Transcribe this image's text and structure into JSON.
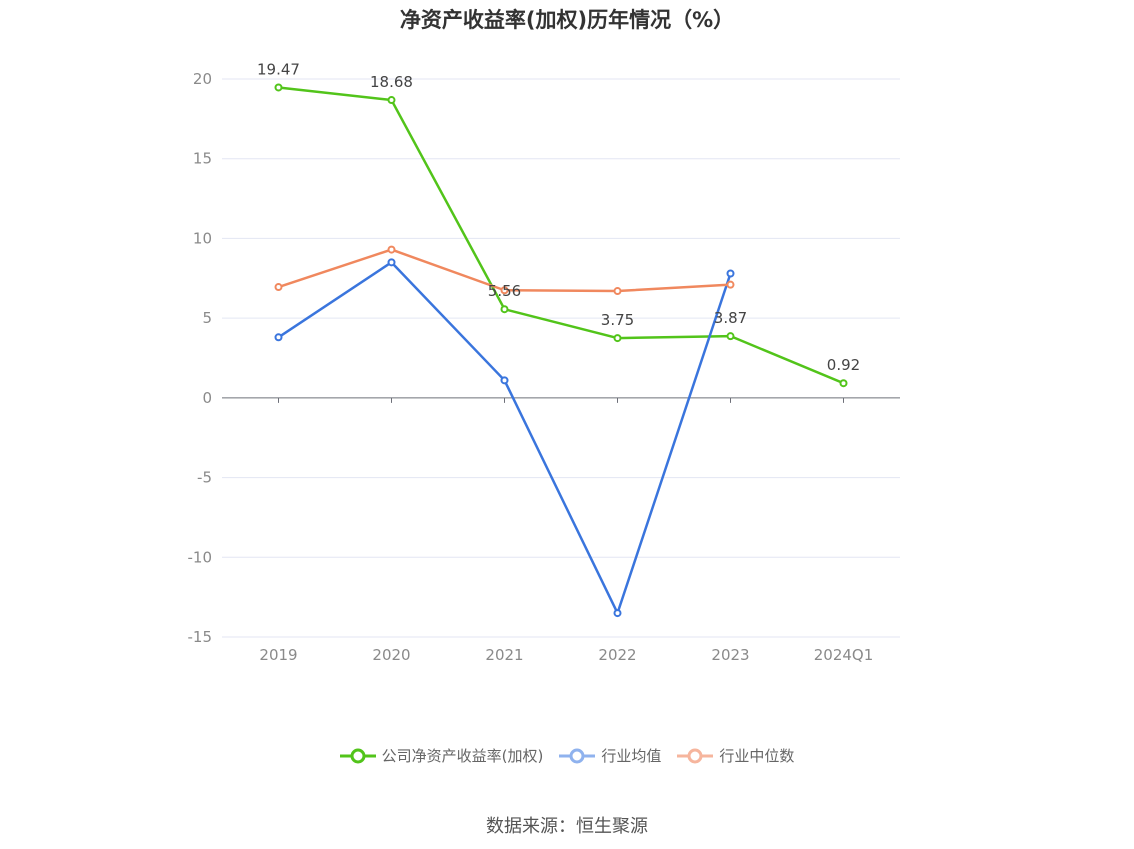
{
  "chart_data": {
    "type": "line",
    "title": "净资产收益率(加权)历年情况（%）",
    "categories": [
      "2019",
      "2020",
      "2021",
      "2022",
      "2023",
      "2024Q1"
    ],
    "ylim": [
      -15,
      20
    ],
    "yticks": [
      20,
      15,
      10,
      5,
      0,
      -5,
      -10,
      -15
    ],
    "grid": true,
    "legend_position": "bottom",
    "series": [
      {
        "name": "公司净资产收益率(加权)",
        "color": "#52c41a",
        "values": [
          19.47,
          18.68,
          5.56,
          3.75,
          3.87,
          0.92
        ],
        "labels": [
          "19.47",
          "18.68",
          "5.56",
          "3.75",
          "3.87",
          "0.92"
        ]
      },
      {
        "name": "行业均值",
        "color": "#3a75dd",
        "values": [
          3.8,
          8.5,
          1.1,
          -13.5,
          7.8,
          null
        ]
      },
      {
        "name": "行业中位数",
        "color": "#f0885e",
        "values": [
          6.95,
          9.3,
          6.75,
          6.7,
          7.1,
          null
        ]
      }
    ]
  },
  "source": "数据来源：恒生聚源"
}
